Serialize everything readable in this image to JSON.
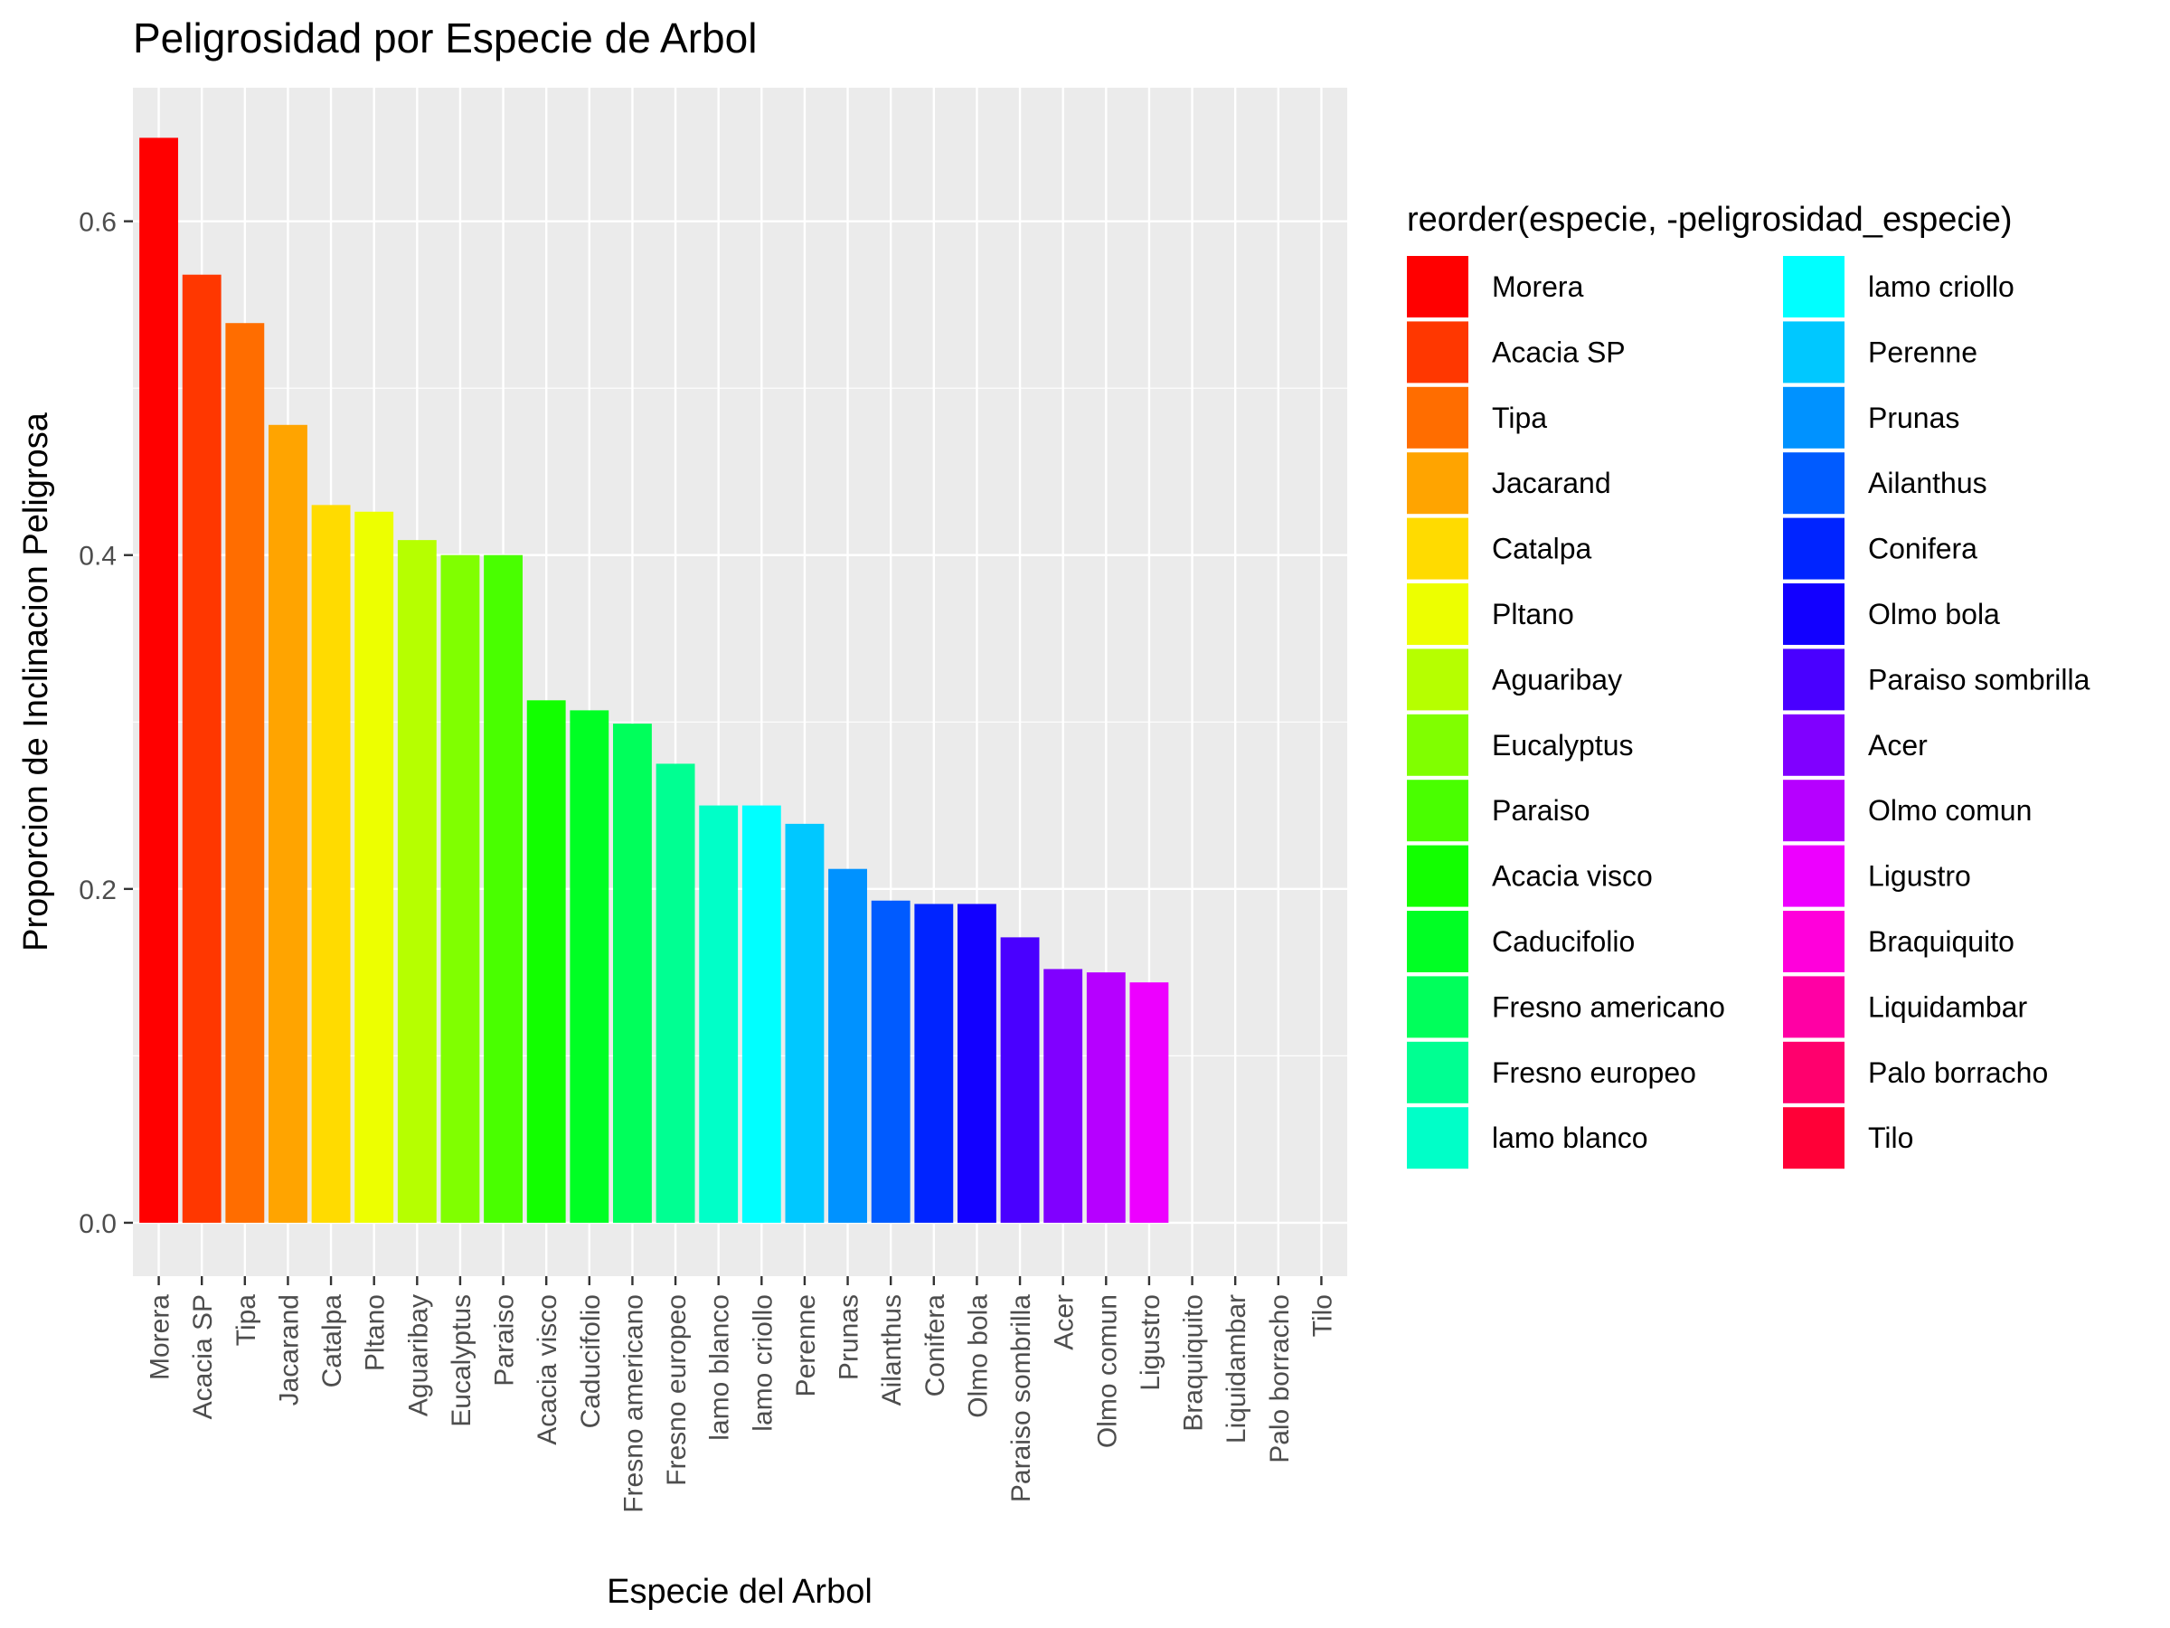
{
  "chart_data": {
    "type": "bar",
    "title": "Peligrosidad por Especie de Arbol",
    "xlabel": "Especie del Arbol",
    "ylabel": "Proporcion de Inclinacion Peligrosa",
    "ylim": [
      -0.032,
      0.68
    ],
    "yticks": [
      "0.0",
      "0.2",
      "0.4",
      "0.6"
    ],
    "grid": true,
    "legend_title": "reorder(especie, -peligrosidad_especie)",
    "legend_position": "right",
    "categories": [
      "Morera",
      "Acacia SP",
      "Tipa",
      "Jacarand",
      "Catalpa",
      "Pltano",
      "Aguaribay",
      "Eucalyptus",
      "Paraiso",
      "Acacia visco",
      "Caducifolio",
      "Fresno americano",
      "Fresno europeo",
      "lamo blanco",
      "lamo criollo",
      "Perenne",
      "Prunas",
      "Ailanthus",
      "Conifera",
      "Olmo bola",
      "Paraiso sombrilla",
      "Acer",
      "Olmo comun",
      "Ligustro",
      "Braquiquito",
      "Liquidambar",
      "Palo borracho",
      "Tilo"
    ],
    "values": [
      0.65,
      0.568,
      0.539,
      0.478,
      0.43,
      0.426,
      0.409,
      0.4,
      0.4,
      0.313,
      0.307,
      0.299,
      0.275,
      0.25,
      0.25,
      0.239,
      0.212,
      0.193,
      0.191,
      0.191,
      0.171,
      0.152,
      0.15,
      0.144,
      0.0,
      0.0,
      0.0,
      0.0
    ],
    "colors": [
      "#FF0000",
      "#FF3700",
      "#FF6D00",
      "#FFA400",
      "#FFDB00",
      "#EDFF00",
      "#B6FF00",
      "#80FF00",
      "#49FF00",
      "#12FF00",
      "#00FF24",
      "#00FF5B",
      "#00FF92",
      "#00FFC8",
      "#00FFFF",
      "#00C8FF",
      "#0092FF",
      "#005BFF",
      "#0024FF",
      "#1200FF",
      "#4900FF",
      "#8000FF",
      "#B600FF",
      "#ED00FF",
      "#FF00DB",
      "#FF00A4",
      "#FF006D",
      "#FF0037"
    ]
  }
}
